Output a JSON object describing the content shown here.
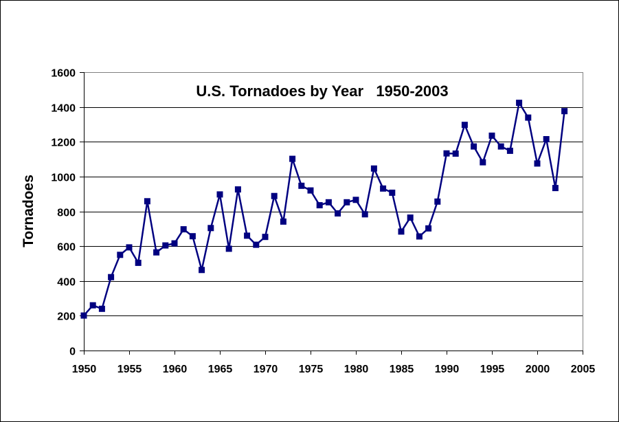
{
  "chart_data": {
    "type": "line",
    "title": "U.S. Tornadoes by Year   1950-2003",
    "xlabel": "",
    "ylabel": "Tornadoes",
    "xlim": [
      1950,
      2005
    ],
    "ylim": [
      0,
      1600
    ],
    "xticks": [
      1950,
      1955,
      1960,
      1965,
      1970,
      1975,
      1980,
      1985,
      1990,
      1995,
      2000,
      2005
    ],
    "yticks": [
      0,
      200,
      400,
      600,
      800,
      1000,
      1200,
      1400,
      1600
    ],
    "grid": "horizontal",
    "legend": "none",
    "series": [
      {
        "name": "Tornadoes",
        "color": "#000080",
        "marker": "square",
        "x": [
          1950,
          1951,
          1952,
          1953,
          1954,
          1955,
          1956,
          1957,
          1958,
          1959,
          1960,
          1961,
          1962,
          1963,
          1964,
          1965,
          1966,
          1967,
          1968,
          1969,
          1970,
          1971,
          1972,
          1973,
          1974,
          1975,
          1976,
          1977,
          1978,
          1979,
          1980,
          1981,
          1982,
          1983,
          1984,
          1985,
          1986,
          1987,
          1988,
          1989,
          1990,
          1991,
          1992,
          1993,
          1994,
          1995,
          1996,
          1997,
          1998,
          1999,
          2000,
          2001,
          2002,
          2003
        ],
        "values": [
          201,
          260,
          240,
          422,
          550,
          593,
          504,
          858,
          564,
          604,
          616,
          697,
          657,
          463,
          704,
          897,
          585,
          926,
          660,
          608,
          653,
          888,
          741,
          1102,
          947,
          920,
          835,
          852,
          788,
          852,
          866,
          783,
          1046,
          931,
          907,
          684,
          764,
          656,
          702,
          856,
          1133,
          1132,
          1297,
          1173,
          1082,
          1235,
          1173,
          1148,
          1424,
          1339,
          1075,
          1215,
          934,
          1376
        ]
      }
    ]
  }
}
